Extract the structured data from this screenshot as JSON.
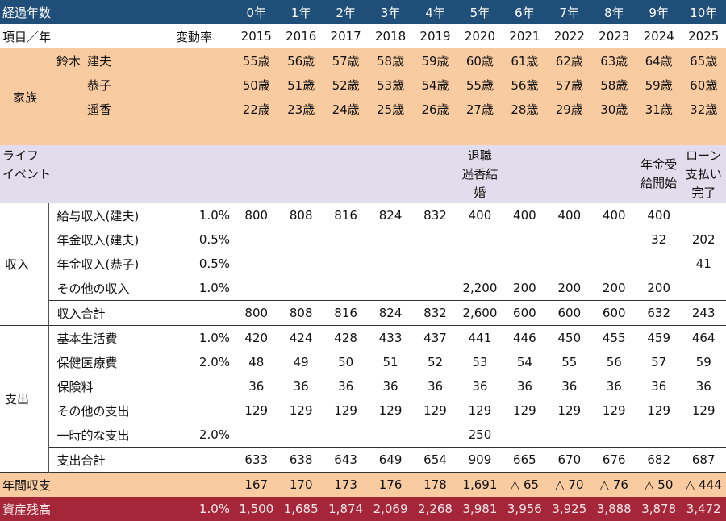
{
  "header": {
    "label": "経過年数",
    "elapsed": [
      "0年",
      "1年",
      "2年",
      "3年",
      "4年",
      "5年",
      "6年",
      "7年",
      "8年",
      "9年",
      "10年"
    ]
  },
  "subheader": {
    "item": "項目／年",
    "rate": "変動率",
    "years": [
      "2015",
      "2016",
      "2017",
      "2018",
      "2019",
      "2020",
      "2021",
      "2022",
      "2023",
      "2024",
      "2025"
    ]
  },
  "family": {
    "label": "家族",
    "members": [
      {
        "surname": "鈴木",
        "name": "建夫",
        "ages": [
          "55歳",
          "56歳",
          "57歳",
          "58歳",
          "59歳",
          "60歳",
          "61歳",
          "62歳",
          "63歳",
          "64歳",
          "65歳"
        ]
      },
      {
        "name": "恭子",
        "ages": [
          "50歳",
          "51歳",
          "52歳",
          "53歳",
          "54歳",
          "55歳",
          "56歳",
          "57歳",
          "58歳",
          "59歳",
          "60歳"
        ]
      },
      {
        "name": "遥香",
        "ages": [
          "22歳",
          "23歳",
          "24歳",
          "25歳",
          "26歳",
          "27歳",
          "28歳",
          "29歳",
          "30歳",
          "31歳",
          "32歳"
        ]
      }
    ]
  },
  "life_events": {
    "label": [
      "ライフ",
      "イベント"
    ],
    "events": [
      null,
      null,
      null,
      null,
      null,
      [
        "退職",
        "遥香結",
        "婚"
      ],
      null,
      null,
      null,
      [
        "年金受",
        "給開始"
      ],
      [
        "ローン",
        "支払い",
        "完了"
      ]
    ]
  },
  "income": {
    "label": "収入",
    "rows": [
      {
        "item": "給与収入(建夫)",
        "rate": "1.0%",
        "values": [
          "800",
          "808",
          "816",
          "824",
          "832",
          "400",
          "400",
          "400",
          "400",
          "400",
          null
        ]
      },
      {
        "item": "年金収入(建夫)",
        "rate": "0.5%",
        "values": [
          null,
          null,
          null,
          null,
          null,
          null,
          null,
          null,
          null,
          "32",
          "202"
        ]
      },
      {
        "item": "年金収入(恭子)",
        "rate": "0.5%",
        "values": [
          null,
          null,
          null,
          null,
          null,
          null,
          null,
          null,
          null,
          null,
          "41"
        ]
      },
      {
        "item": "その他の収入",
        "rate": "1.0%",
        "values": [
          null,
          null,
          null,
          null,
          null,
          "2,200",
          "200",
          "200",
          "200",
          "200",
          null
        ]
      }
    ],
    "total": {
      "item": "収入合計",
      "values": [
        "800",
        "808",
        "816",
        "824",
        "832",
        "2,600",
        "600",
        "600",
        "600",
        "632",
        "243"
      ]
    }
  },
  "expense": {
    "label": "支出",
    "rows": [
      {
        "item": "基本生活費",
        "rate": "1.0%",
        "values": [
          "420",
          "424",
          "428",
          "433",
          "437",
          "441",
          "446",
          "450",
          "455",
          "459",
          "464"
        ]
      },
      {
        "item": "保健医療費",
        "rate": "2.0%",
        "values": [
          "48",
          "49",
          "50",
          "51",
          "52",
          "53",
          "54",
          "55",
          "56",
          "57",
          "59"
        ]
      },
      {
        "item": "保険料",
        "rate": null,
        "values": [
          "36",
          "36",
          "36",
          "36",
          "36",
          "36",
          "36",
          "36",
          "36",
          "36",
          "36"
        ]
      },
      {
        "item": "その他の支出",
        "rate": null,
        "values": [
          "129",
          "129",
          "129",
          "129",
          "129",
          "129",
          "129",
          "129",
          "129",
          "129",
          "129"
        ]
      },
      {
        "item": "一時的な支出",
        "rate": "2.0%",
        "values": [
          null,
          null,
          null,
          null,
          null,
          "250",
          null,
          null,
          null,
          null,
          null
        ]
      }
    ],
    "total": {
      "item": "支出合計",
      "values": [
        "633",
        "638",
        "643",
        "649",
        "654",
        "909",
        "665",
        "670",
        "676",
        "682",
        "687"
      ]
    }
  },
  "balance": {
    "item": "年間収支",
    "values": [
      "167",
      "170",
      "173",
      "176",
      "178",
      "1,691",
      "△ 65",
      "△ 70",
      "△ 76",
      "△ 50",
      "△ 444"
    ]
  },
  "assets": {
    "item": "資産残高",
    "rate": "1.0%",
    "values": [
      "1,500",
      "1,685",
      "1,874",
      "2,069",
      "2,268",
      "3,981",
      "3,956",
      "3,925",
      "3,888",
      "3,878",
      "3,472"
    ]
  }
}
